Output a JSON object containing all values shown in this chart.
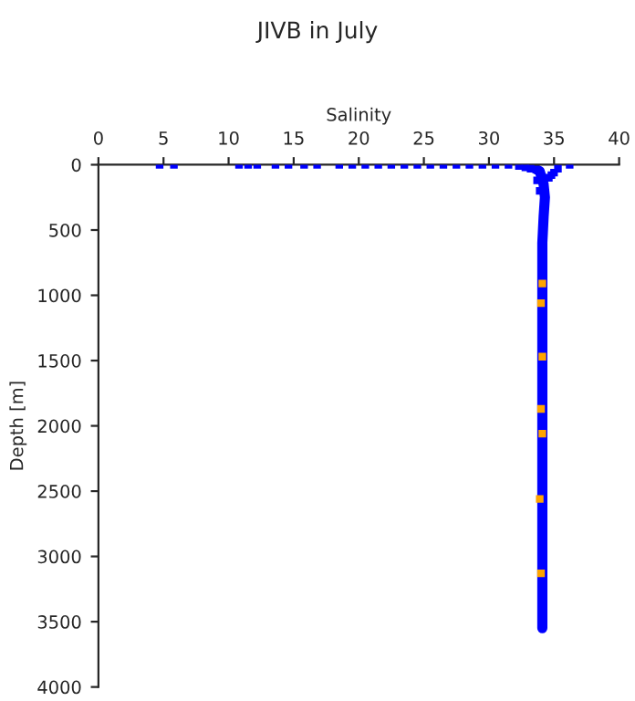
{
  "chart_data": {
    "type": "line",
    "title": "JIVB in July",
    "xlabel": "Salinity",
    "ylabel": "Depth [m]",
    "xlim": [
      0,
      40
    ],
    "xticks": [
      0,
      5,
      10,
      15,
      20,
      25,
      30,
      35,
      40
    ],
    "ylim": [
      4000,
      0
    ],
    "yticks": [
      0,
      500,
      1000,
      1500,
      2000,
      2500,
      3000,
      3500,
      4000
    ],
    "series": [
      {
        "type": "scatter",
        "color": "#0000ff",
        "x": [
          4.7,
          5.8,
          10.8,
          11.5,
          12.2,
          13.6,
          14.6,
          15.8,
          16.8,
          18.5,
          19.5,
          20.5,
          21.5,
          22.5,
          23.5,
          24.5,
          25.5,
          26.5,
          27.5,
          28.5,
          29.5,
          30.5,
          31.5,
          32.3,
          32.8,
          33.2,
          33.7,
          33.9,
          34.6,
          34.8,
          35.0,
          35.3,
          36.2
        ],
        "values": [
          0,
          0,
          0,
          0,
          0,
          0,
          0,
          0,
          0,
          0,
          0,
          0,
          0,
          0,
          0,
          0,
          0,
          0,
          0,
          0,
          0,
          0,
          0,
          10,
          20,
          30,
          120,
          200,
          100,
          80,
          60,
          30,
          0
        ]
      },
      {
        "color": "#0000ff",
        "x": [
          33.0,
          33.9,
          34.2,
          34.3,
          34.2,
          34.1,
          34.1,
          34.1,
          34.1,
          34.1,
          34.1
        ],
        "values": [
          0,
          50,
          150,
          250,
          400,
          600,
          1000,
          1500,
          2000,
          3000,
          3550
        ]
      },
      {
        "type": "scatter",
        "color": "#ffa500",
        "x": [
          34.1,
          34.0,
          34.1,
          34.0,
          34.1,
          33.9,
          34.0
        ],
        "values": [
          910,
          1060,
          1470,
          1870,
          2060,
          2560,
          3130
        ]
      }
    ]
  }
}
